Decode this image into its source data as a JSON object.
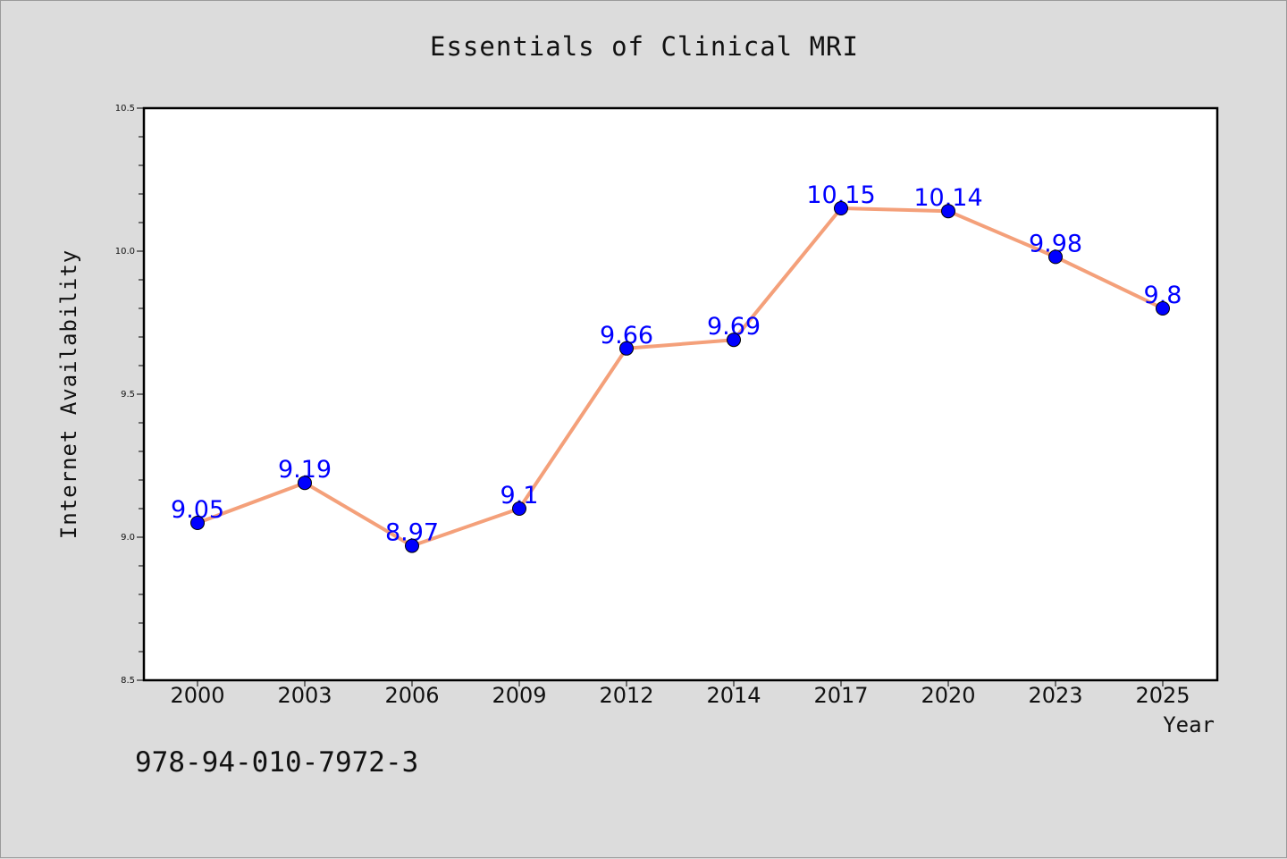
{
  "chart_data": {
    "type": "line",
    "title": "Essentials of Clinical MRI",
    "xlabel": "Year",
    "ylabel": "Internet Availability",
    "x": [
      "2000",
      "2003",
      "2006",
      "2009",
      "2012",
      "2014",
      "2017",
      "2020",
      "2023",
      "2025"
    ],
    "values": [
      9.05,
      9.19,
      8.97,
      9.1,
      9.66,
      9.69,
      10.15,
      10.14,
      9.98,
      9.8
    ],
    "data_labels": [
      "9.05",
      "9.19",
      "8.97",
      "9.1",
      "9.66",
      "9.69",
      "10.15",
      "10.14",
      "9.98",
      "9.8"
    ],
    "ylim": [
      8.5,
      10.5
    ],
    "yticks": [
      "8.5",
      "9.0",
      "9.5",
      "10.0",
      "10.5"
    ],
    "grid": false,
    "line_color": "#f4a07a",
    "marker_color": "#0000ff",
    "label_color": "#0000ff"
  },
  "footer": {
    "isbn": "978-94-010-7972-3"
  }
}
